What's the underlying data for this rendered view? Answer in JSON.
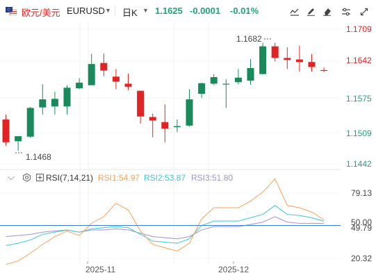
{
  "header": {
    "pair_cn": "欧元/美元",
    "symbol": "EURUSD",
    "interval": "日K",
    "price": "1.1625",
    "change": "-0.0001",
    "change_pct": "-0.01%"
  },
  "colors": {
    "up": "#1a8a5a",
    "down": "#e02424",
    "price_text": "#1fa37a",
    "rsi1": "#f5a35c",
    "rsi2": "#3ec8cf",
    "rsi3": "#a48fd6",
    "ref": "#3a7bd5"
  },
  "icons": [
    "flag-eu-us-icon",
    "dropdown-icon",
    "line-tool-icon",
    "draw-tool-icon",
    "delete-tool-icon",
    "settings-icon",
    "fullscreen-icon",
    "close-icon",
    "collapse-icon",
    "eye-icon",
    "indicator-icon"
  ],
  "indicator": {
    "name": "RSI(7,14,21)",
    "rsi1_label": "RSI1:54.97",
    "rsi2_label": "RSI2:53.87",
    "rsi3_label": "RSI3:51.80"
  },
  "chart_data": {
    "type": "candlestick",
    "price_axis_ticks": [
      "1.1709",
      "1.1642",
      "1.1575",
      "1.1509",
      "1.1442"
    ],
    "rsi_axis_ticks": [
      "79.13",
      "50.00",
      "49.79",
      "20.32"
    ],
    "x_labels": [
      "2025-11",
      "2025-12"
    ],
    "annotations": {
      "high": "1.1682",
      "low": "1.1468"
    },
    "candles": [
      {
        "o": 1.153,
        "h": 1.154,
        "l": 1.1478,
        "c": 1.1485
      },
      {
        "o": 1.1487,
        "h": 1.1495,
        "l": 1.1468,
        "c": 1.1497
      },
      {
        "o": 1.1496,
        "h": 1.1555,
        "l": 1.1494,
        "c": 1.1553
      },
      {
        "o": 1.1554,
        "h": 1.16,
        "l": 1.154,
        "c": 1.157
      },
      {
        "o": 1.1556,
        "h": 1.1585,
        "l": 1.154,
        "c": 1.1571
      },
      {
        "o": 1.1556,
        "h": 1.1598,
        "l": 1.154,
        "c": 1.1593
      },
      {
        "o": 1.1592,
        "h": 1.1612,
        "l": 1.159,
        "c": 1.1603
      },
      {
        "o": 1.1598,
        "h": 1.166,
        "l": 1.16,
        "c": 1.164
      },
      {
        "o": 1.1642,
        "h": 1.1661,
        "l": 1.1616,
        "c": 1.1627
      },
      {
        "o": 1.1615,
        "h": 1.163,
        "l": 1.159,
        "c": 1.1605
      },
      {
        "o": 1.1601,
        "h": 1.1621,
        "l": 1.1588,
        "c": 1.1595
      },
      {
        "o": 1.1587,
        "h": 1.1587,
        "l": 1.1522,
        "c": 1.1536
      },
      {
        "o": 1.1535,
        "h": 1.1542,
        "l": 1.1495,
        "c": 1.1528
      },
      {
        "o": 1.1525,
        "h": 1.156,
        "l": 1.1485,
        "c": 1.1512
      },
      {
        "o": 1.1515,
        "h": 1.153,
        "l": 1.1505,
        "c": 1.1517
      },
      {
        "o": 1.1518,
        "h": 1.159,
        "l": 1.1516,
        "c": 1.157
      },
      {
        "o": 1.1581,
        "h": 1.1603,
        "l": 1.1573,
        "c": 1.1602
      },
      {
        "o": 1.1601,
        "h": 1.162,
        "l": 1.1598,
        "c": 1.1614
      },
      {
        "o": 1.1601,
        "h": 1.161,
        "l": 1.1553,
        "c": 1.1601
      },
      {
        "o": 1.1604,
        "h": 1.163,
        "l": 1.16,
        "c": 1.1613
      },
      {
        "o": 1.1607,
        "h": 1.165,
        "l": 1.1599,
        "c": 1.1632
      },
      {
        "o": 1.162,
        "h": 1.1682,
        "l": 1.162,
        "c": 1.1675
      },
      {
        "o": 1.1675,
        "h": 1.1682,
        "l": 1.1645,
        "c": 1.1652
      },
      {
        "o": 1.1652,
        "h": 1.1673,
        "l": 1.163,
        "c": 1.1648
      },
      {
        "o": 1.1649,
        "h": 1.1676,
        "l": 1.1625,
        "c": 1.1644
      },
      {
        "o": 1.1644,
        "h": 1.166,
        "l": 1.1625,
        "c": 1.1634
      },
      {
        "o": 1.1628,
        "h": 1.1633,
        "l": 1.1624,
        "c": 1.1627
      }
    ],
    "rsi1": [
      15,
      18,
      25,
      33,
      40,
      45,
      41,
      52,
      58,
      70,
      64,
      45,
      33,
      30,
      27,
      34,
      56,
      66,
      66,
      66,
      72,
      80,
      92,
      68,
      66,
      62,
      54.97
    ],
    "rsi2": [
      32,
      34,
      37,
      42,
      44,
      46,
      44,
      47,
      48,
      49,
      48,
      42,
      36,
      35,
      34,
      38,
      50,
      54,
      54,
      54,
      57,
      60,
      68,
      60,
      59,
      57,
      53.87
    ],
    "rsi3": [
      40,
      41,
      42,
      44,
      45,
      46,
      44,
      46,
      46,
      47,
      46,
      43,
      40,
      39,
      38,
      40,
      46,
      49,
      49,
      49,
      51,
      53,
      58,
      53,
      52,
      52,
      51.8
    ]
  }
}
